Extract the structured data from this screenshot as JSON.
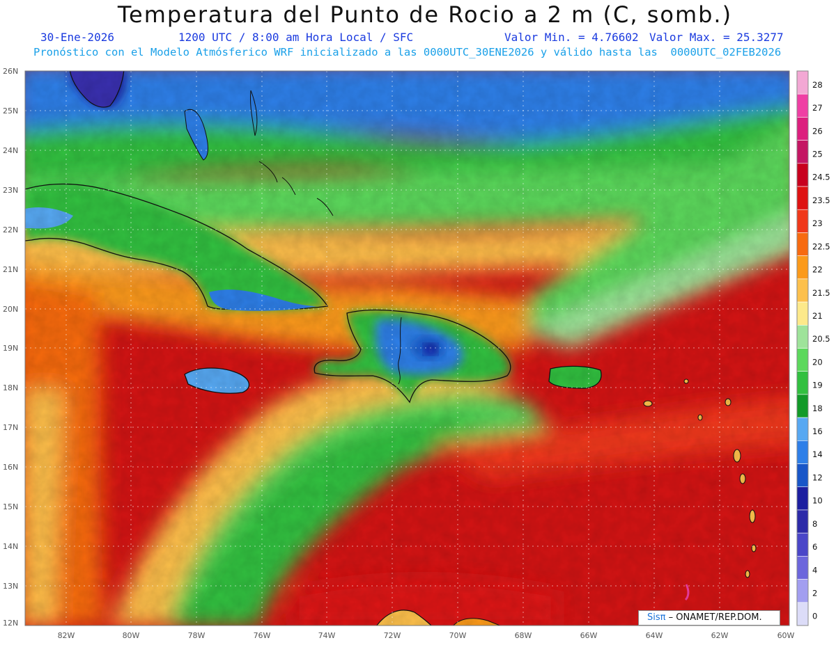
{
  "header": {
    "title": "Temperatura del Punto de Rocio a 2 m (C, somb.)",
    "date": "30-Ene-2026",
    "time": "1200 UTC / 8:00 am Hora Local / SFC",
    "min_label": "Valor Min. = 4.76602",
    "max_label": "Valor Max. = 25.3277",
    "model_line": "Pronóstico con el Modelo Atmósferico WRF inicializado a las 0000UTC_30ENE2026 y válido hasta las  0000UTC_02FEB2026"
  },
  "map": {
    "lat_labels": [
      "26N",
      "25N",
      "24N",
      "23N",
      "22N",
      "21N",
      "20N",
      "19N",
      "18N",
      "17N",
      "16N",
      "15N",
      "14N",
      "13N",
      "12N"
    ],
    "lon_labels": [
      "82W",
      "80W",
      "78W",
      "76W",
      "74W",
      "72W",
      "70W",
      "68W",
      "66W",
      "64W",
      "62W",
      "60W"
    ],
    "lat_range": [
      12,
      26
    ],
    "lon_range": [
      -83.2,
      -60
    ],
    "grid": true
  },
  "colorbar": {
    "levels": [
      {
        "label": "28",
        "color": "#f3a8d4"
      },
      {
        "label": "27",
        "color": "#ef3fa4"
      },
      {
        "label": "26",
        "color": "#dc1f7e"
      },
      {
        "label": "25",
        "color": "#c41663"
      },
      {
        "label": "24.5",
        "color": "#c8001e"
      },
      {
        "label": "23.5",
        "color": "#de1212"
      },
      {
        "label": "23",
        "color": "#f0381a"
      },
      {
        "label": "22.5",
        "color": "#f76a10"
      },
      {
        "label": "22",
        "color": "#fb9a1a"
      },
      {
        "label": "21.5",
        "color": "#fdc04c"
      },
      {
        "label": "21",
        "color": "#fde98a"
      },
      {
        "label": "20.5",
        "color": "#9ee39a"
      },
      {
        "label": "20",
        "color": "#5cd85c"
      },
      {
        "label": "19",
        "color": "#32c040"
      },
      {
        "label": "18",
        "color": "#129a28"
      },
      {
        "label": "16",
        "color": "#57a8f2"
      },
      {
        "label": "14",
        "color": "#2e7fe8"
      },
      {
        "label": "12",
        "color": "#1856c8"
      },
      {
        "label": "10",
        "color": "#1c1ea0"
      },
      {
        "label": "8",
        "color": "#2c2aa8"
      },
      {
        "label": "6",
        "color": "#4a46c8"
      },
      {
        "label": "4",
        "color": "#6c66dc"
      },
      {
        "label": "2",
        "color": "#a29ef0"
      },
      {
        "label": "0",
        "color": "#dcdcf8"
      }
    ]
  },
  "credit": {
    "brand": "Sisπ",
    "text": " – ONAMET/REP.DOM."
  }
}
